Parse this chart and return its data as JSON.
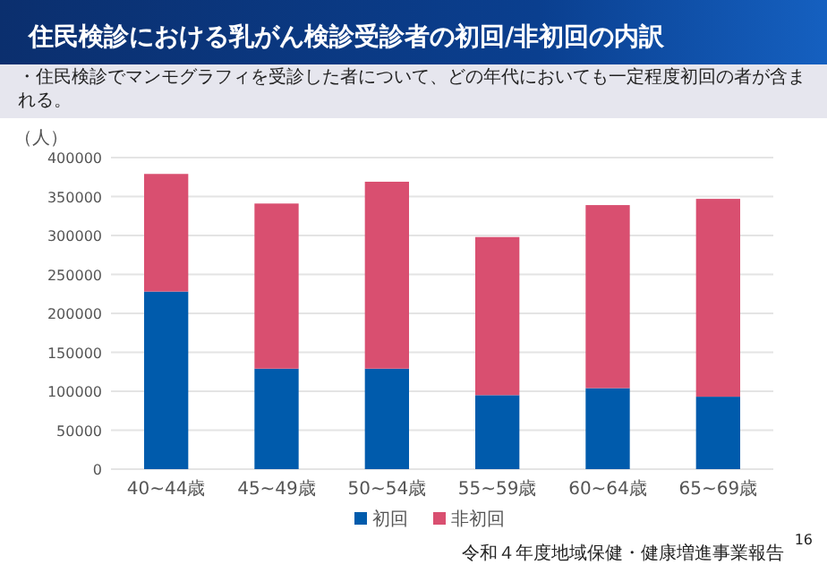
{
  "chart_data": {
    "type": "bar",
    "stacked": true,
    "title": "住民検診における乳がん検診受診者の初回/非初回の内訳",
    "subtitle": "・住民検診でマンモグラフィを受診した者について、どの年代においても一定程度初回の者が含まれる。",
    "ylabel": "（人）",
    "categories": [
      "40~44歳",
      "45~49歳",
      "50~54歳",
      "55~59歳",
      "60~64歳",
      "65~69歳"
    ],
    "series": [
      {
        "name": "初回",
        "color": "#005bac",
        "values": [
          228000,
          129000,
          129000,
          95000,
          104000,
          93000
        ]
      },
      {
        "name": "非初回",
        "color": "#d94f70",
        "values": [
          151000,
          212000,
          240000,
          203000,
          235000,
          254000
        ]
      }
    ],
    "ylim": [
      0,
      400000
    ],
    "yticks": [
      0,
      50000,
      100000,
      150000,
      200000,
      250000,
      300000,
      350000,
      400000
    ],
    "grid": "y",
    "legend": "bottom",
    "annotations": [
      "令和４年度地域保健・健康増進事業報告",
      "16"
    ]
  }
}
